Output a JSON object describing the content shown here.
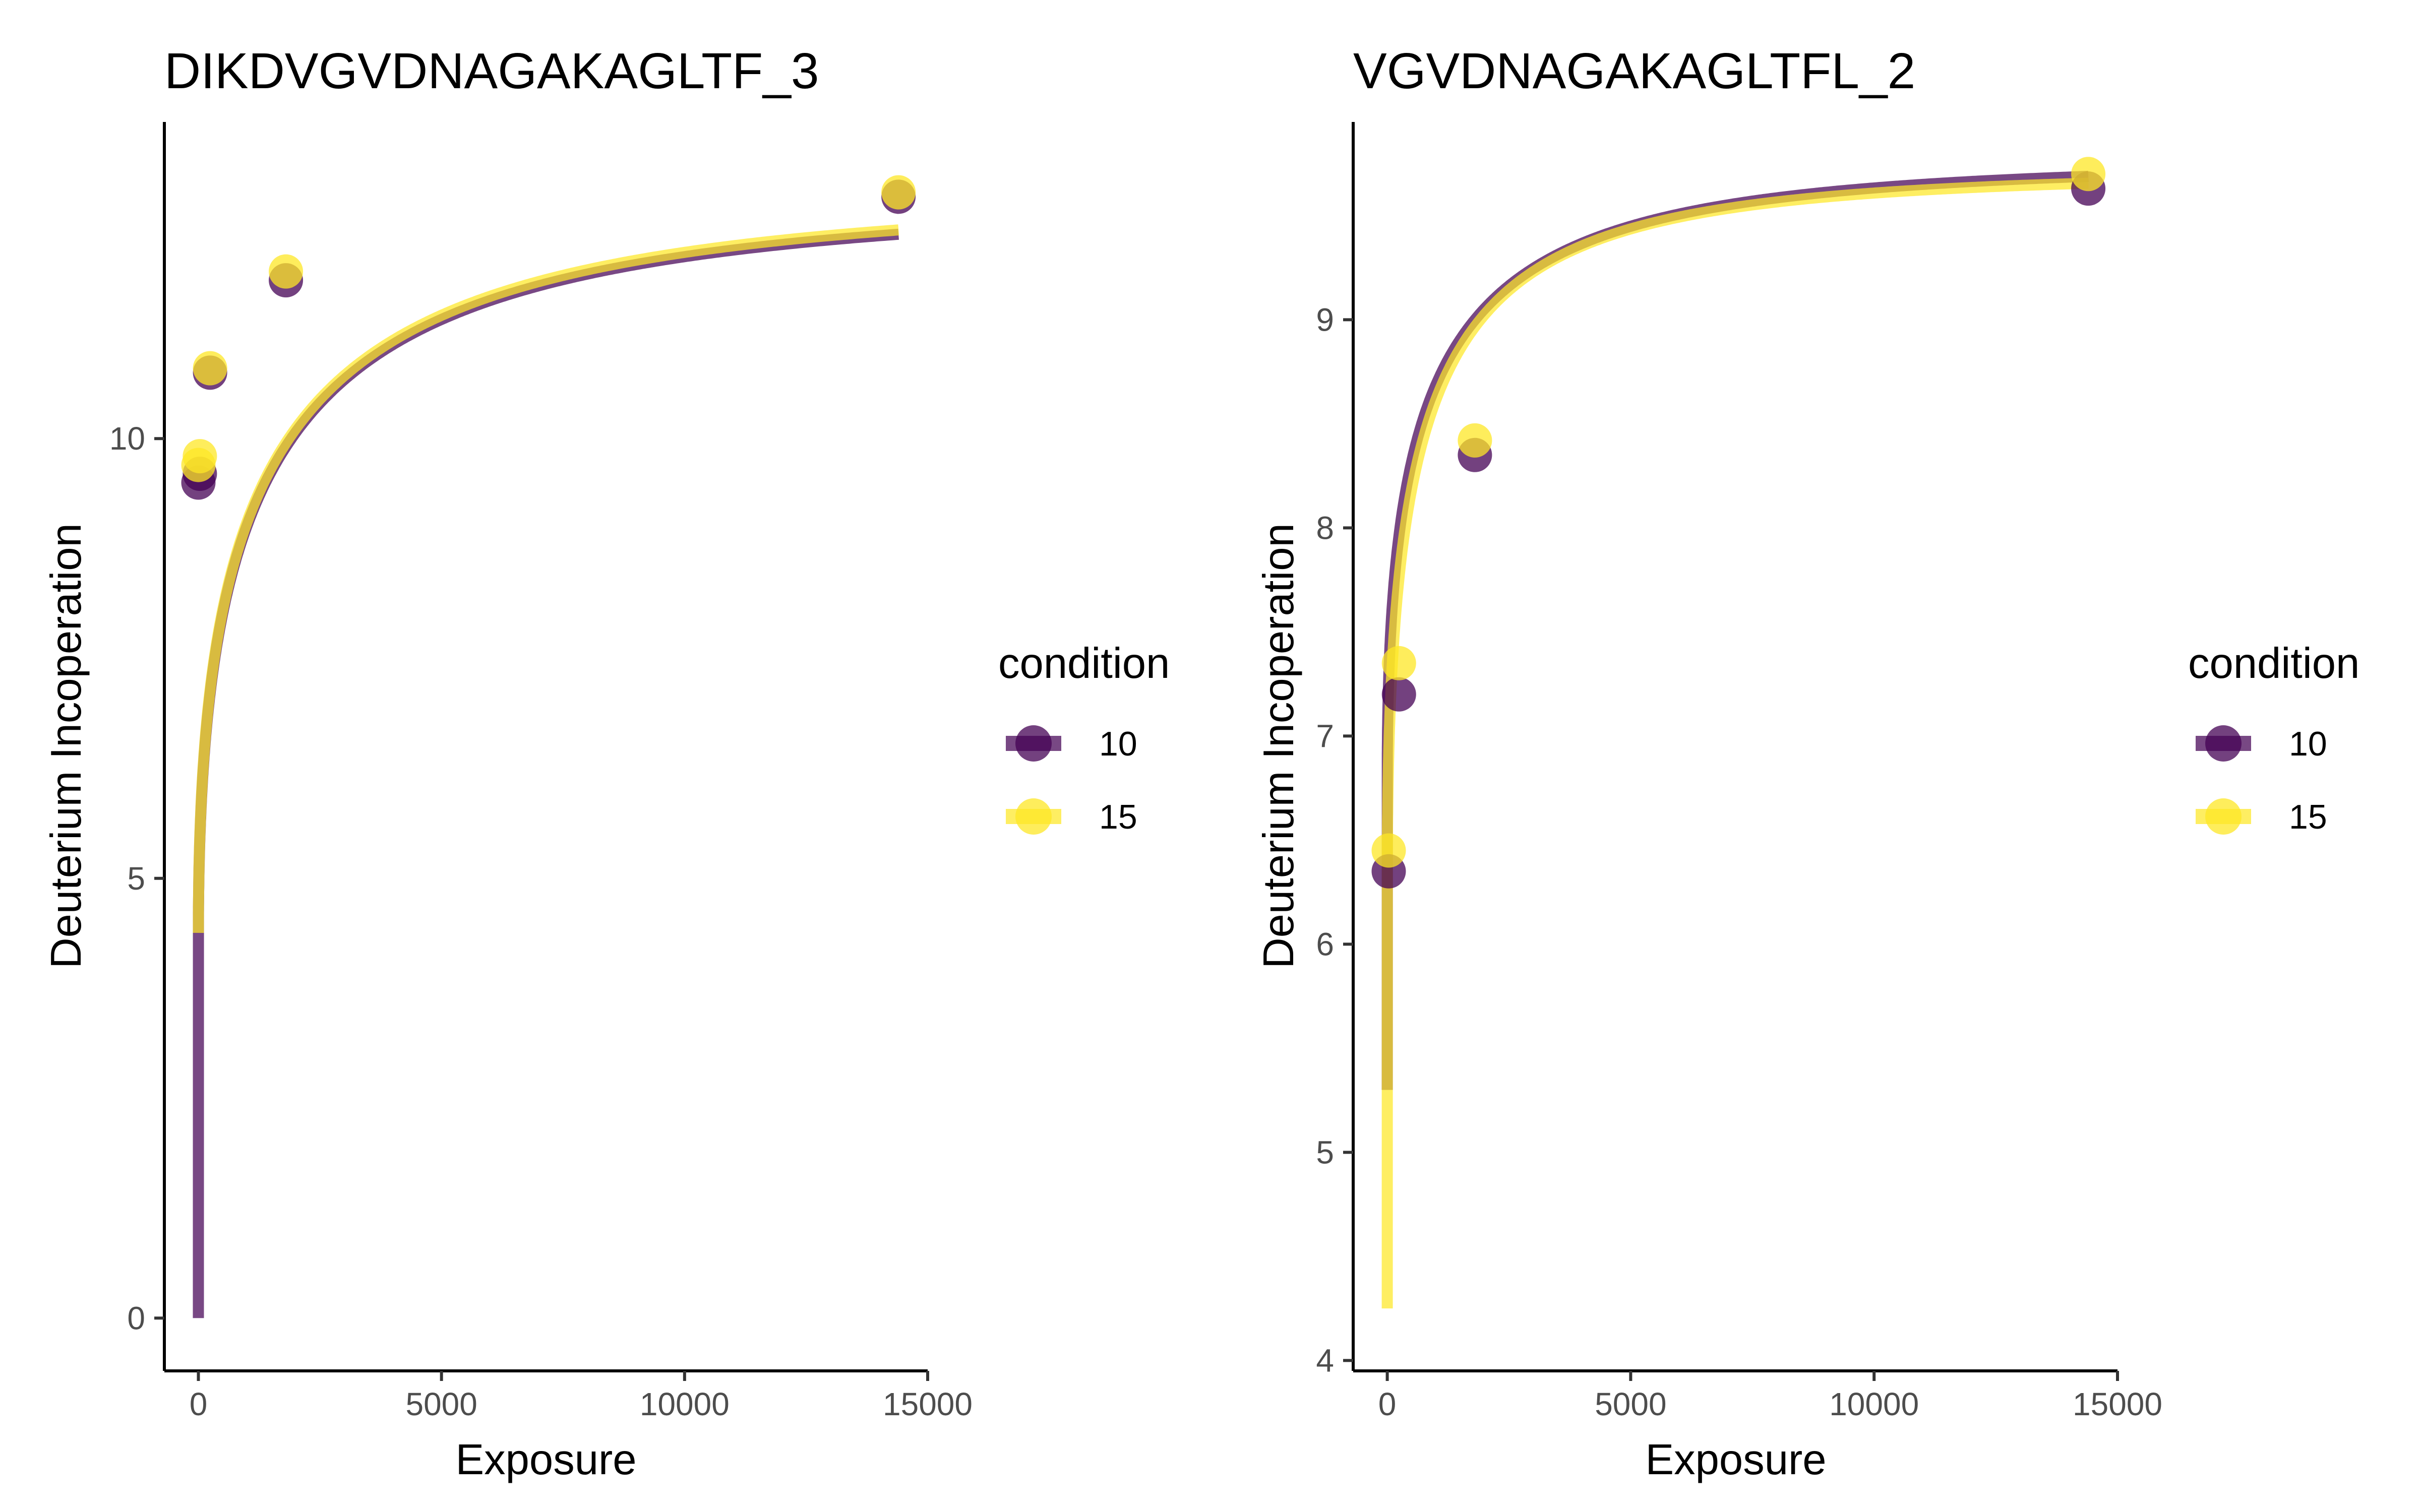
{
  "chart_data": [
    {
      "type": "line",
      "title": "DIKDVGVDNAGAKAGLTF_3",
      "xlabel": "Exposure",
      "ylabel": "Deuterium Incoperation",
      "xlim": [
        -700,
        15000
      ],
      "ylim": [
        -0.6,
        13.6
      ],
      "x_ticks": [
        0,
        5000,
        10000,
        15000
      ],
      "x_tick_labels": [
        "0",
        "5000",
        "10000",
        "15000"
      ],
      "y_ticks": [
        0,
        5,
        10
      ],
      "y_tick_labels": [
        "0",
        "5",
        "10"
      ],
      "grid": false,
      "legend_title": "condition",
      "legend_position": "right",
      "series": [
        {
          "name": "10",
          "color": "#440154",
          "points": [
            {
              "x": 0,
              "y": 9.5
            },
            {
              "x": 30,
              "y": 9.6
            },
            {
              "x": 240,
              "y": 10.75
            },
            {
              "x": 1800,
              "y": 11.8
            },
            {
              "x": 14400,
              "y": 12.75
            }
          ],
          "fit": {
            "y0": 0,
            "a": 4.35,
            "b": 8.35,
            "k": 0.2
          }
        },
        {
          "name": "15",
          "color": "#FDE725",
          "points": [
            {
              "x": 0,
              "y": 9.7
            },
            {
              "x": 30,
              "y": 9.8
            },
            {
              "x": 240,
              "y": 10.8
            },
            {
              "x": 1800,
              "y": 11.9
            },
            {
              "x": 14400,
              "y": 12.8
            }
          ],
          "fit": {
            "y0": 4.38,
            "b": 8.37,
            "k": 0.2
          }
        }
      ]
    },
    {
      "type": "line",
      "title": "VGVDNAGAKAGLTFL_2",
      "xlabel": "Exposure",
      "ylabel": "Deuterium Incoperation",
      "xlim": [
        -700,
        15000
      ],
      "ylim": [
        3.95,
        9.95
      ],
      "x_ticks": [
        0,
        5000,
        10000,
        15000
      ],
      "x_tick_labels": [
        "0",
        "5000",
        "10000",
        "15000"
      ],
      "y_ticks": [
        4,
        5,
        6,
        7,
        8,
        9
      ],
      "y_tick_labels": [
        "4",
        "5",
        "6",
        "7",
        "8",
        "9"
      ],
      "grid": false,
      "legend_title": "condition",
      "legend_position": "right",
      "series": [
        {
          "name": "10",
          "color": "#440154",
          "points": [
            {
              "x": 30,
              "y": 6.35
            },
            {
              "x": 240,
              "y": 7.2
            },
            {
              "x": 1800,
              "y": 8.35
            },
            {
              "x": 14400,
              "y": 9.63
            }
          ],
          "fit": {
            "y0": 5.3,
            "a": 1.5,
            "b": 2.95,
            "k": 0.25
          }
        },
        {
          "name": "15",
          "color": "#FDE725",
          "points": [
            {
              "x": 30,
              "y": 6.45
            },
            {
              "x": 240,
              "y": 7.35
            },
            {
              "x": 1800,
              "y": 8.42
            },
            {
              "x": 14400,
              "y": 9.7
            }
          ],
          "fit": {
            "y0": 4.25,
            "a": 2.05,
            "b": 3.4,
            "k": 0.28
          }
        }
      ]
    }
  ]
}
